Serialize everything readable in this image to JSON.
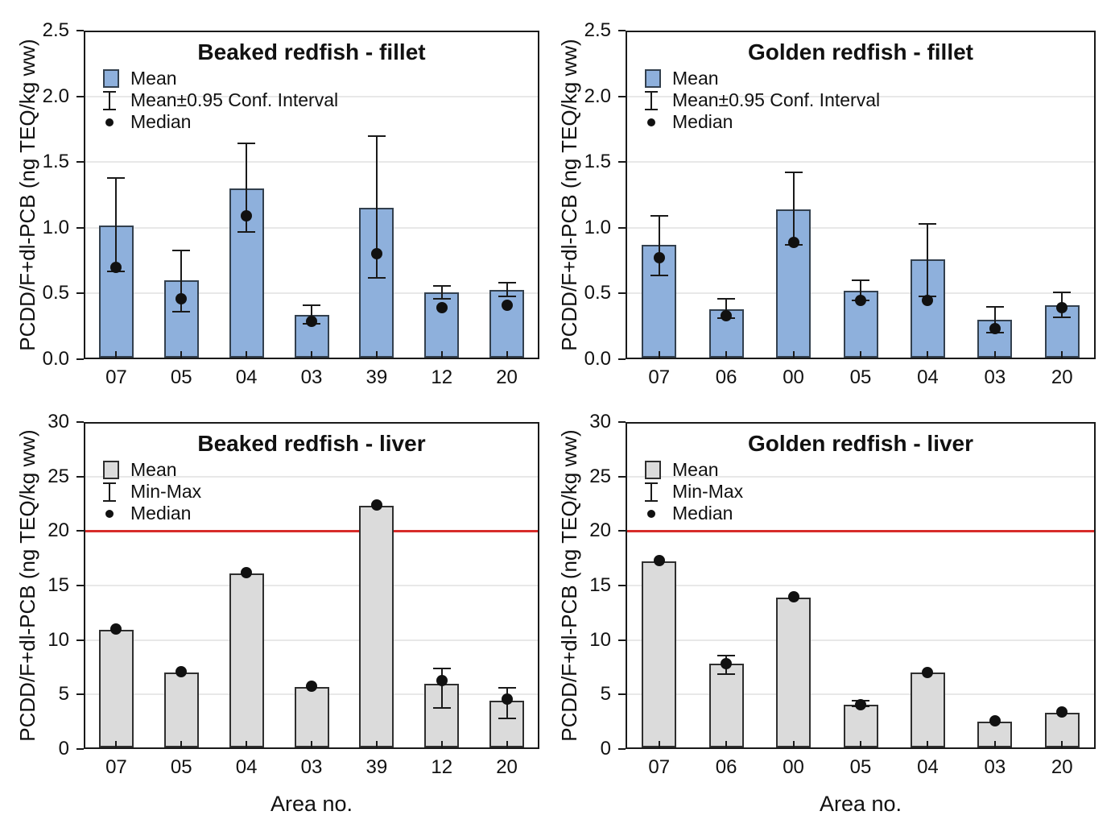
{
  "figure": {
    "background": "#FFFFFF",
    "colors": {
      "fillet_bar_fill": "#8EB0DC",
      "fillet_bar_border": "#33404E",
      "liver_bar_fill": "#DBDBDB",
      "liver_bar_border": "#2F2F2F",
      "reference_line": "#D72C2A",
      "gridline": "#E8E8E8",
      "frame": "#1A1A1A",
      "text": "#111111"
    }
  },
  "chart_data": [
    {
      "type": "bar",
      "position": "top-left",
      "title": "Beaked redfish - fillet",
      "xlabel": "",
      "ylabel": "PCDD/F+dl-PCB (ng TEQ/kg ww)",
      "ylim": [
        0,
        2.5
      ],
      "yticks": [
        0,
        0.5,
        1.0,
        1.5,
        2.0,
        2.5
      ],
      "ytick_labels": [
        "0.0",
        "0.5",
        "1.0",
        "1.5",
        "2.0",
        "2.5"
      ],
      "grid": true,
      "legend_position": "top-left-inside",
      "error_type": "ci95",
      "bar_fill": "#8EB0DC",
      "bar_border": "#33404E",
      "categories": [
        "07",
        "05",
        "04",
        "03",
        "39",
        "12",
        "20"
      ],
      "legend": [
        {
          "glyph": "bar-swatch",
          "label": "Mean"
        },
        {
          "glyph": "error-bar",
          "label": "Mean±0.95 Conf. Interval"
        },
        {
          "glyph": "dot",
          "label": "Median"
        }
      ],
      "series": [
        {
          "name": "Mean",
          "values": [
            1.02,
            0.6,
            1.3,
            0.34,
            1.15,
            0.51,
            0.53
          ]
        },
        {
          "name": "CI low",
          "values": [
            0.67,
            0.36,
            0.97,
            0.27,
            0.62,
            0.46,
            0.48
          ]
        },
        {
          "name": "CI high",
          "values": [
            1.38,
            0.83,
            1.64,
            0.41,
            1.7,
            0.56,
            0.58
          ]
        },
        {
          "name": "Median",
          "values": [
            0.7,
            0.46,
            1.09,
            0.29,
            0.8,
            0.39,
            0.41
          ]
        }
      ]
    },
    {
      "type": "bar",
      "position": "top-right",
      "title": "Golden redfish - fillet",
      "xlabel": "",
      "ylabel": "PCDD/F+dl-PCB (ng TEQ/kg ww)",
      "ylim": [
        0,
        2.5
      ],
      "yticks": [
        0,
        0.5,
        1.0,
        1.5,
        2.0,
        2.5
      ],
      "ytick_labels": [
        "0.0",
        "0.5",
        "1.0",
        "1.5",
        "2.0",
        "2.5"
      ],
      "grid": true,
      "legend_position": "top-left-inside",
      "error_type": "ci95",
      "bar_fill": "#8EB0DC",
      "bar_border": "#33404E",
      "categories": [
        "07",
        "06",
        "00",
        "05",
        "04",
        "03",
        "20"
      ],
      "legend": [
        {
          "glyph": "bar-swatch",
          "label": "Mean"
        },
        {
          "glyph": "error-bar",
          "label": "Mean±0.95 Conf. Interval"
        },
        {
          "glyph": "dot",
          "label": "Median"
        }
      ],
      "series": [
        {
          "name": "Mean",
          "values": [
            0.87,
            0.38,
            1.14,
            0.52,
            0.76,
            0.3,
            0.41
          ]
        },
        {
          "name": "CI low",
          "values": [
            0.64,
            0.31,
            0.87,
            0.45,
            0.48,
            0.2,
            0.32
          ]
        },
        {
          "name": "CI high",
          "values": [
            1.09,
            0.46,
            1.42,
            0.6,
            1.03,
            0.4,
            0.51
          ]
        },
        {
          "name": "Median",
          "values": [
            0.77,
            0.33,
            0.89,
            0.45,
            0.45,
            0.23,
            0.39
          ]
        }
      ]
    },
    {
      "type": "bar",
      "position": "bottom-left",
      "title": "Beaked redfish - liver",
      "xlabel": "Area no.",
      "ylabel": "PCDD/F+dl-PCB (ng TEQ/kg ww)",
      "ylim": [
        0,
        30
      ],
      "yticks": [
        0,
        5,
        10,
        15,
        20,
        25,
        30
      ],
      "ytick_labels": [
        "0",
        "5",
        "10",
        "15",
        "20",
        "25",
        "30"
      ],
      "grid": true,
      "legend_position": "top-left-inside",
      "error_type": "minmax",
      "reference_line": 20,
      "bar_fill": "#DBDBDB",
      "bar_border": "#2F2F2F",
      "categories": [
        "07",
        "05",
        "04",
        "03",
        "39",
        "12",
        "20"
      ],
      "legend": [
        {
          "glyph": "bar-swatch",
          "label": "Mean"
        },
        {
          "glyph": "error-bar",
          "label": "Min-Max"
        },
        {
          "glyph": "dot",
          "label": "Median"
        }
      ],
      "series": [
        {
          "name": "Mean",
          "values": [
            10.9,
            7.0,
            16.1,
            5.7,
            22.3,
            6.0,
            4.4
          ]
        },
        {
          "name": "Min",
          "values": [
            null,
            null,
            null,
            null,
            null,
            3.8,
            2.8
          ]
        },
        {
          "name": "Max",
          "values": [
            null,
            null,
            null,
            null,
            null,
            7.4,
            5.6
          ]
        },
        {
          "name": "Median",
          "values": [
            11.0,
            7.1,
            16.2,
            5.8,
            22.4,
            6.3,
            4.6
          ]
        }
      ]
    },
    {
      "type": "bar",
      "position": "bottom-right",
      "title": "Golden redfish - liver",
      "xlabel": "Area no.",
      "ylabel": "PCDD/F+dl-PCB (ng TEQ/kg ww)",
      "ylim": [
        0,
        30
      ],
      "yticks": [
        0,
        5,
        10,
        15,
        20,
        25,
        30
      ],
      "ytick_labels": [
        "0",
        "5",
        "10",
        "15",
        "20",
        "25",
        "30"
      ],
      "grid": true,
      "legend_position": "top-left-inside",
      "error_type": "minmax",
      "reference_line": 20,
      "bar_fill": "#DBDBDB",
      "bar_border": "#2F2F2F",
      "categories": [
        "07",
        "06",
        "00",
        "05",
        "04",
        "03",
        "20"
      ],
      "legend": [
        {
          "glyph": "bar-swatch",
          "label": "Mean"
        },
        {
          "glyph": "error-bar",
          "label": "Min-Max"
        },
        {
          "glyph": "dot",
          "label": "Median"
        }
      ],
      "series": [
        {
          "name": "Mean",
          "values": [
            17.2,
            7.8,
            13.9,
            4.1,
            7.0,
            2.5,
            3.3
          ]
        },
        {
          "name": "Min",
          "values": [
            null,
            6.9,
            null,
            3.9,
            null,
            null,
            null
          ]
        },
        {
          "name": "Max",
          "values": [
            null,
            8.6,
            null,
            4.4,
            null,
            null,
            null
          ]
        },
        {
          "name": "Median",
          "values": [
            17.3,
            7.8,
            14.0,
            4.1,
            7.0,
            2.6,
            3.4
          ]
        }
      ]
    }
  ]
}
